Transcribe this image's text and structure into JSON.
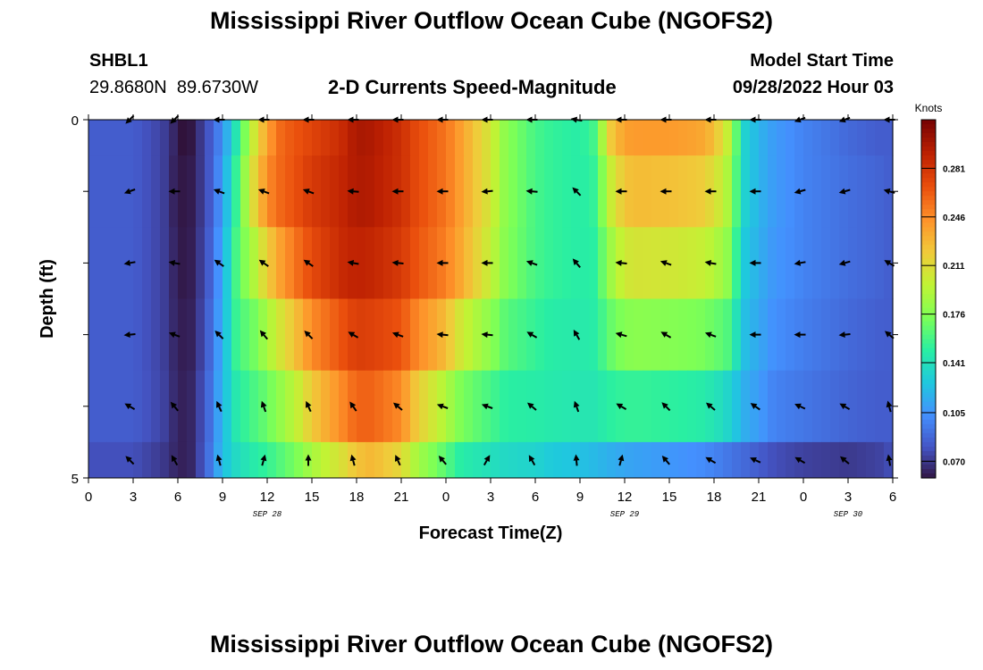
{
  "title": "Mississippi River Outflow Ocean Cube (NGOFS2)",
  "bottom_title": "Mississippi River Outflow Ocean Cube (NGOFS2)",
  "station": {
    "id": "SHBL1",
    "coords": "29.8680N  89.6730W"
  },
  "subtitle": "2-D Currents Speed-Magnitude",
  "model_start": {
    "label": "Model Start Time",
    "value": "09/28/2022 Hour 03"
  },
  "colors": {
    "arrow": "#000000",
    "colormap": [
      "#30123b",
      "#4454c4",
      "#4490fe",
      "#1fc8de",
      "#29efa2",
      "#7dff56",
      "#c1f334",
      "#f1ca3a",
      "#fe922a",
      "#ea4f0d",
      "#be2102",
      "#7a0403"
    ]
  },
  "chart_data": {
    "type": "heatmap",
    "xlabel": "Forecast Time(Z)",
    "ylabel": "Depth (ft)",
    "x_ticks": [
      "0",
      "3",
      "6",
      "9",
      "12",
      "15",
      "18",
      "21",
      "0",
      "3",
      "6",
      "9",
      "12",
      "15",
      "18",
      "21",
      "0",
      "3",
      "6"
    ],
    "x_hours": [
      0,
      3,
      6,
      9,
      12,
      15,
      18,
      21,
      24,
      27,
      30,
      33,
      36,
      39,
      42,
      45,
      48,
      51,
      54
    ],
    "date_labels": [
      {
        "hour": 12,
        "text": "SEP 28"
      },
      {
        "hour": 36,
        "text": "SEP 29"
      },
      {
        "hour": 51,
        "text": "SEP 30"
      }
    ],
    "y_tick_labels": [
      "0",
      "5"
    ],
    "ylim": [
      0,
      5
    ],
    "xlim": [
      0,
      54
    ],
    "colorbar": {
      "unit": "Knots",
      "ticks": [
        "0.281",
        "0.246",
        "0.211",
        "0.176",
        "0.141",
        "0.105",
        "0.070"
      ],
      "range": [
        0.058,
        0.316
      ]
    },
    "depth_rows": [
      0,
      1,
      2,
      3,
      4,
      5
    ],
    "time_hours": [
      0,
      3,
      5,
      6,
      6.5,
      7,
      8,
      9,
      10,
      11,
      12,
      13,
      14,
      15,
      17,
      18,
      19,
      21,
      22,
      24,
      25,
      27,
      28,
      30,
      31,
      33,
      34,
      35,
      36,
      37,
      39,
      41,
      42,
      43,
      44,
      45,
      46,
      48,
      51,
      53,
      54
    ],
    "speed": [
      [
        0.085,
        0.085,
        0.075,
        0.062,
        0.05,
        0.062,
        0.08,
        0.105,
        0.15,
        0.2,
        0.24,
        0.262,
        0.268,
        0.275,
        0.287,
        0.3,
        0.298,
        0.285,
        0.272,
        0.256,
        0.24,
        0.206,
        0.18,
        0.16,
        0.155,
        0.15,
        0.16,
        0.22,
        0.24,
        0.242,
        0.242,
        0.238,
        0.228,
        0.198,
        0.135,
        0.12,
        0.11,
        0.1,
        0.09,
        0.085,
        0.085
      ],
      [
        0.085,
        0.085,
        0.075,
        0.06,
        0.06,
        0.062,
        0.08,
        0.11,
        0.16,
        0.21,
        0.248,
        0.262,
        0.27,
        0.28,
        0.29,
        0.298,
        0.296,
        0.285,
        0.272,
        0.256,
        0.24,
        0.206,
        0.18,
        0.16,
        0.155,
        0.15,
        0.155,
        0.2,
        0.225,
        0.228,
        0.226,
        0.222,
        0.212,
        0.19,
        0.135,
        0.12,
        0.11,
        0.1,
        0.092,
        0.088,
        0.085
      ],
      [
        0.085,
        0.085,
        0.075,
        0.062,
        0.06,
        0.063,
        0.082,
        0.115,
        0.165,
        0.19,
        0.22,
        0.242,
        0.258,
        0.272,
        0.288,
        0.292,
        0.29,
        0.28,
        0.268,
        0.252,
        0.236,
        0.2,
        0.178,
        0.16,
        0.155,
        0.15,
        0.152,
        0.185,
        0.205,
        0.208,
        0.206,
        0.202,
        0.195,
        0.18,
        0.13,
        0.118,
        0.108,
        0.1,
        0.092,
        0.088,
        0.085
      ],
      [
        0.085,
        0.085,
        0.075,
        0.063,
        0.062,
        0.064,
        0.085,
        0.118,
        0.16,
        0.17,
        0.19,
        0.21,
        0.228,
        0.248,
        0.268,
        0.278,
        0.276,
        0.268,
        0.25,
        0.228,
        0.205,
        0.18,
        0.165,
        0.155,
        0.15,
        0.148,
        0.15,
        0.168,
        0.178,
        0.18,
        0.178,
        0.175,
        0.17,
        0.162,
        0.125,
        0.115,
        0.105,
        0.098,
        0.09,
        0.086,
        0.085
      ],
      [
        0.085,
        0.085,
        0.076,
        0.064,
        0.063,
        0.066,
        0.088,
        0.122,
        0.15,
        0.16,
        0.17,
        0.185,
        0.2,
        0.222,
        0.248,
        0.262,
        0.262,
        0.248,
        0.222,
        0.192,
        0.175,
        0.16,
        0.152,
        0.15,
        0.148,
        0.146,
        0.146,
        0.152,
        0.155,
        0.155,
        0.153,
        0.15,
        0.145,
        0.135,
        0.118,
        0.11,
        0.1,
        0.095,
        0.088,
        0.085,
        0.085
      ],
      [
        0.08,
        0.08,
        0.072,
        0.064,
        0.063,
        0.066,
        0.09,
        0.125,
        0.14,
        0.148,
        0.155,
        0.165,
        0.175,
        0.19,
        0.21,
        0.225,
        0.23,
        0.215,
        0.19,
        0.165,
        0.15,
        0.142,
        0.138,
        0.135,
        0.13,
        0.126,
        0.122,
        0.118,
        0.114,
        0.112,
        0.108,
        0.104,
        0.1,
        0.095,
        0.09,
        0.085,
        0.08,
        0.075,
        0.072,
        0.075,
        0.08
      ]
    ],
    "arrow_hours": [
      3,
      6,
      9,
      12,
      15,
      18,
      21,
      24,
      27,
      30,
      33,
      36,
      39,
      42,
      45,
      48,
      51,
      54
    ],
    "arrow_depths": [
      0,
      1,
      2,
      3,
      4,
      4.75
    ],
    "arrow_angles_deg": [
      [
        225,
        225,
        180,
        180,
        180,
        180,
        180,
        180,
        180,
        180,
        170,
        180,
        180,
        180,
        180,
        200,
        200,
        180
      ],
      [
        200,
        180,
        160,
        160,
        160,
        175,
        180,
        180,
        185,
        175,
        135,
        180,
        180,
        180,
        180,
        195,
        195,
        165
      ],
      [
        190,
        170,
        145,
        145,
        145,
        170,
        175,
        180,
        180,
        160,
        130,
        175,
        160,
        170,
        180,
        190,
        195,
        150
      ],
      [
        185,
        160,
        135,
        130,
        135,
        150,
        160,
        175,
        175,
        150,
        120,
        165,
        150,
        160,
        180,
        180,
        185,
        140
      ],
      [
        150,
        130,
        115,
        110,
        115,
        125,
        140,
        160,
        160,
        140,
        110,
        150,
        135,
        140,
        145,
        155,
        150,
        105
      ],
      [
        135,
        120,
        105,
        75,
        90,
        105,
        115,
        130,
        60,
        120,
        95,
        75,
        130,
        150,
        155,
        150,
        140,
        100
      ]
    ]
  }
}
